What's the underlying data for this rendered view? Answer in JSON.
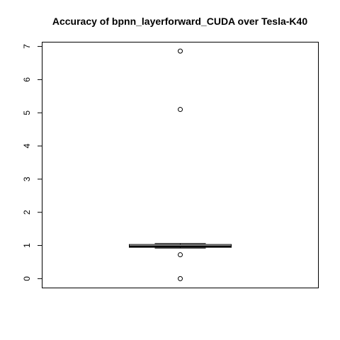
{
  "chart_data": {
    "type": "boxplot",
    "title": "Accuracy of bpnn_layerforward_CUDA over Tesla-K40",
    "xlabel": "",
    "ylabel": "",
    "ylim": [
      -0.28,
      7.13
    ],
    "y_ticks": [
      0,
      1,
      2,
      3,
      4,
      5,
      6,
      7
    ],
    "grid": false,
    "box": {
      "whisker_low": 0.92,
      "q1": 0.945,
      "median": 0.97,
      "q3": 1.03,
      "whisker_high": 1.06
    },
    "outliers": [
      6.86,
      5.1,
      0.72,
      0.0
    ]
  },
  "colors": {
    "background": "#ffffff",
    "stroke": "#000000"
  }
}
